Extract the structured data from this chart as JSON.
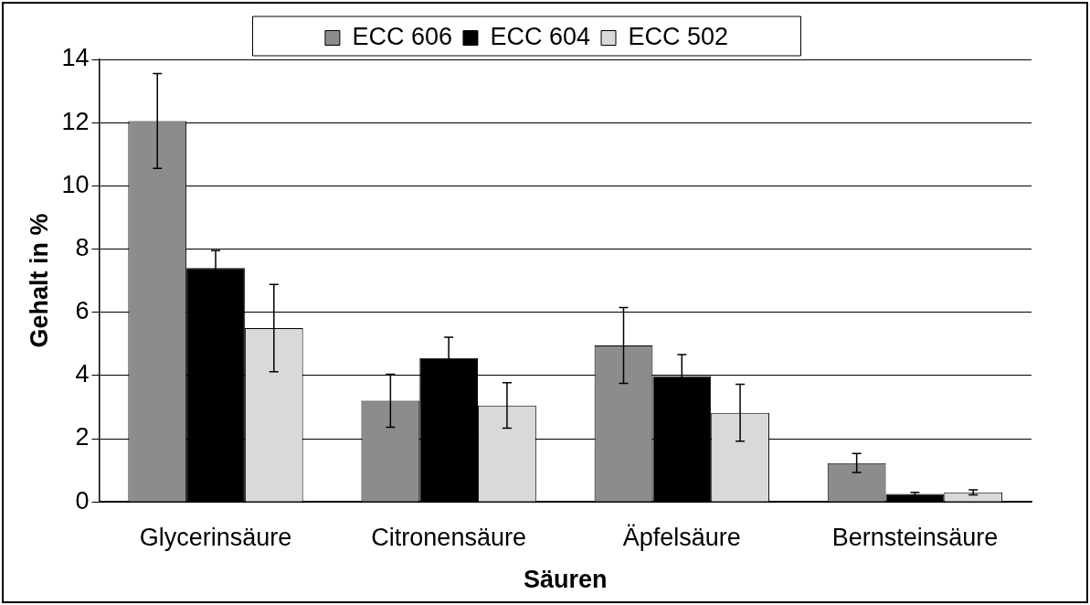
{
  "chart_data": {
    "type": "bar",
    "xlabel": "Säuren",
    "ylabel": "Gehalt in %",
    "categories": [
      "Glycerinsäure",
      "Citronensäure",
      "Äpfelsäure",
      "Bernsteinsäure"
    ],
    "series": [
      {
        "name": "ECC 606",
        "color": "#8c8c8c",
        "values": [
          12.05,
          3.2,
          4.95,
          1.23
        ],
        "errors": [
          1.5,
          0.84,
          1.2,
          0.3
        ]
      },
      {
        "name": "ECC 604",
        "color": "#000000",
        "values": [
          7.4,
          4.55,
          3.98,
          0.25
        ],
        "errors": [
          0.55,
          0.66,
          0.68,
          0.05
        ]
      },
      {
        "name": "ECC 502",
        "color": "#d9d9d9",
        "values": [
          5.5,
          3.05,
          2.82,
          0.3
        ],
        "errors": [
          1.38,
          0.72,
          0.9,
          0.08
        ]
      }
    ],
    "ylim": [
      0,
      14
    ],
    "yticks": [
      0,
      2,
      4,
      6,
      8,
      10,
      12,
      14
    ],
    "grid": "y",
    "legend": "top"
  }
}
